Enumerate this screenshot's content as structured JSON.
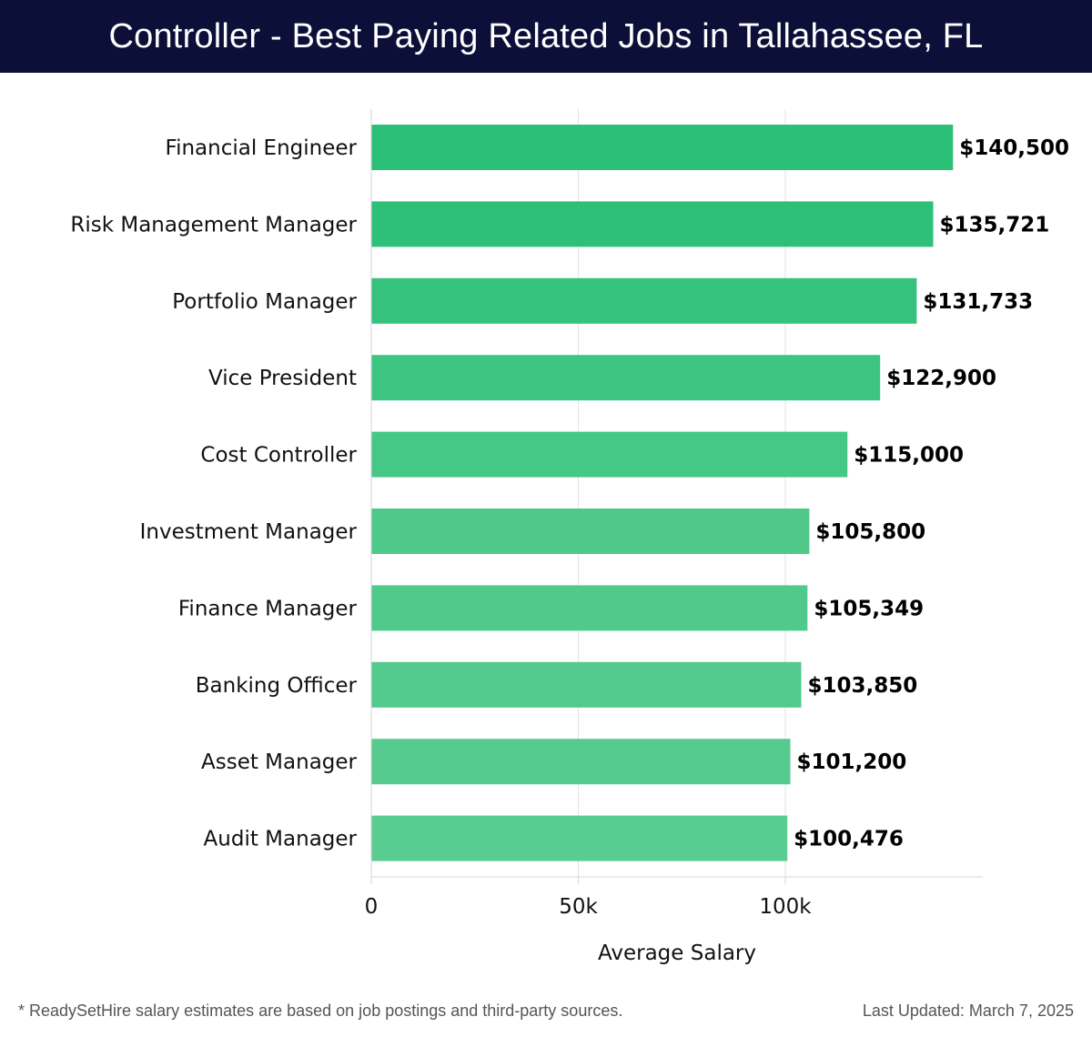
{
  "header": {
    "title": "Controller - Best Paying Related Jobs in Tallahassee, FL"
  },
  "chart_data": {
    "type": "bar",
    "orientation": "horizontal",
    "title": "Controller - Best Paying Related Jobs in Tallahassee, FL",
    "xlabel": "Average Salary",
    "ylabel": "",
    "xlim": [
      0,
      150000
    ],
    "x_ticks": [
      0,
      50000,
      100000
    ],
    "x_tick_labels": [
      "0",
      "50k",
      "100k"
    ],
    "grid": "vertical",
    "legend": "none",
    "categories": [
      "Financial Engineer",
      "Risk Management Manager",
      "Portfolio Manager",
      "Vice President",
      "Cost Controller",
      "Investment Manager",
      "Finance Manager",
      "Banking Officer",
      "Asset Manager",
      "Audit Manager"
    ],
    "values": [
      140500,
      135721,
      131733,
      122900,
      115000,
      105800,
      105349,
      103850,
      101200,
      100476
    ],
    "value_labels": [
      "$140,500",
      "$135,721",
      "$131,733",
      "$122,900",
      "$115,000",
      "$105,800",
      "$105,349",
      "$103,850",
      "$101,200",
      "$100,476"
    ],
    "bar_colors": [
      "#2bbf77",
      "#2ec079",
      "#34c27c",
      "#3ec581",
      "#45c785",
      "#4ec98a",
      "#50ca8b",
      "#52ca8d",
      "#56cb8f",
      "#58cc91"
    ]
  },
  "footer": {
    "note": "* ReadySetHire salary estimates are based on job postings and third-party sources.",
    "updated": "Last Updated: March 7, 2025"
  }
}
